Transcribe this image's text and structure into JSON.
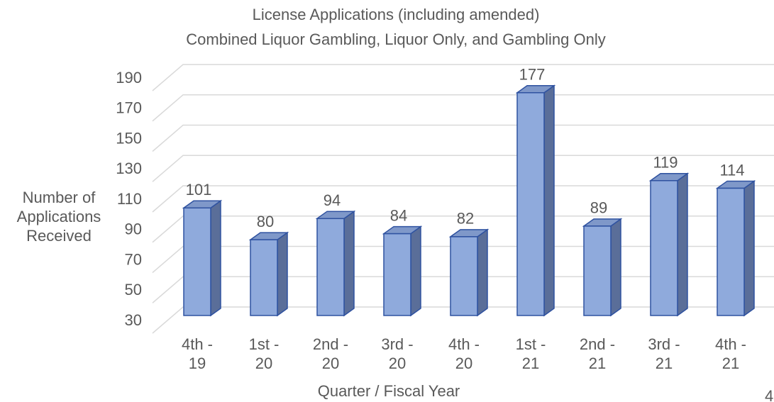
{
  "chart_data": {
    "type": "bar3d",
    "title": "License Applications (including amended)",
    "subtitle": "Combined Liquor Gambling, Liquor Only, and Gambling Only",
    "y_label": "Number of Applications Received",
    "x_label": "Quarter / Fiscal Year",
    "categories": [
      "4th - 19",
      "1st - 20",
      "2nd - 20",
      "3rd - 20",
      "4th - 20",
      "1st - 21",
      "2nd - 21",
      "3rd - 21",
      "4th - 21"
    ],
    "values": [
      101,
      80,
      94,
      84,
      82,
      177,
      89,
      119,
      114
    ],
    "color": "#8faadc",
    "ylim": [
      30,
      190
    ],
    "yticks": [
      30,
      50,
      70,
      90,
      110,
      130,
      150,
      170,
      190
    ],
    "grid": true
  },
  "page_number": "4"
}
